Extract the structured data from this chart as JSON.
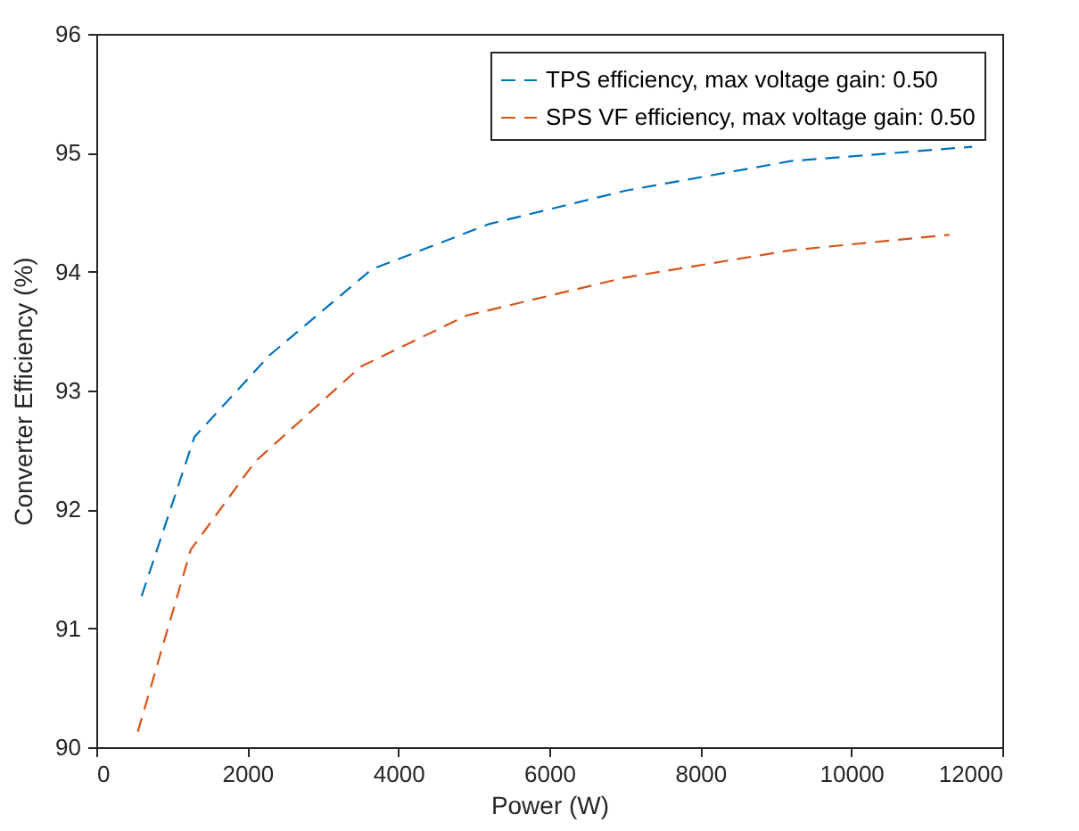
{
  "chart_data": {
    "type": "line",
    "xlabel": "Power (W)",
    "ylabel": "Converter Efficiency (%)",
    "xlim": [
      0,
      12000
    ],
    "xticks": [
      0,
      2000,
      4000,
      6000,
      8000,
      10000,
      12000
    ],
    "ylim": [
      90,
      96
    ],
    "yticks": [
      90,
      91,
      92,
      93,
      94,
      95,
      96
    ],
    "grid": false,
    "legend": "top right",
    "line_style": "dashed",
    "marker": "none",
    "series": [
      {
        "name": "TPS efficiency, max voltage gain: 0.50",
        "color": "#0072bd",
        "x": [
          600,
          1300,
          2300,
          3650,
          5200,
          7000,
          9200,
          11600
        ],
        "values": [
          91.27,
          92.61,
          93.3,
          94.02,
          94.4,
          94.68,
          94.93,
          95.05
        ]
      },
      {
        "name": "SPS VF efficiency, max voltage gain: 0.50",
        "color": "#d95319",
        "x": [
          550,
          1250,
          2100,
          3500,
          4900,
          7000,
          9200,
          11300
        ],
        "values": [
          90.13,
          91.66,
          92.4,
          93.2,
          93.63,
          93.95,
          94.18,
          94.31
        ]
      }
    ]
  }
}
